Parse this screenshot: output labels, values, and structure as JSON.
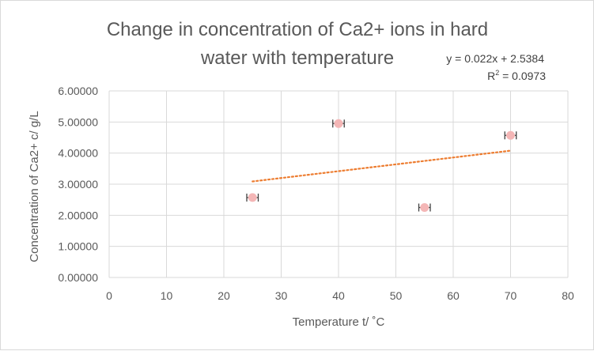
{
  "chart_data": {
    "type": "scatter",
    "title_line1": "Change in concentration of Ca2+ ions in hard",
    "title_line2": "water with temperature",
    "xlabel": "Temperature t/ ˚C",
    "ylabel": "Concentration of Ca2+ c/ g/L",
    "xlim": [
      0,
      80
    ],
    "ylim": [
      0,
      6
    ],
    "x_ticks": [
      "0",
      "10",
      "20",
      "30",
      "40",
      "50",
      "60",
      "70",
      "80"
    ],
    "y_ticks": [
      "0.00000",
      "1.00000",
      "2.00000",
      "3.00000",
      "4.00000",
      "5.00000",
      "6.00000"
    ],
    "grid": true,
    "points": [
      {
        "x": 25,
        "y": 2.57
      },
      {
        "x": 40,
        "y": 4.95
      },
      {
        "x": 55,
        "y": 2.25
      },
      {
        "x": 70,
        "y": 4.57
      }
    ],
    "x_error": 1,
    "trendline": {
      "type": "linear",
      "slope": 0.022,
      "intercept": 2.5384,
      "x_range": [
        25,
        70
      ],
      "equation_prefix": "y = 0.022x + 2.5384",
      "r2_label": "R",
      "r2_sup": "2",
      "r2_value": " = 0.0973"
    },
    "colors": {
      "marker": "#f4b6b6",
      "trendline": "#ed7d31",
      "gridline": "#d9d9d9",
      "errorbar": "#404040",
      "text": "#595959"
    }
  }
}
